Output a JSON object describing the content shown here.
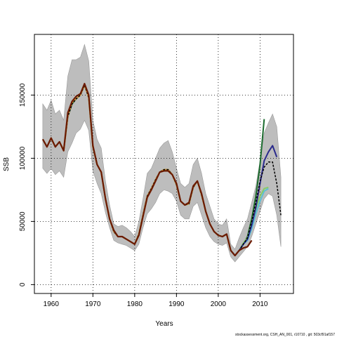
{
  "chart_data": {
    "type": "line",
    "xlabel": "Years",
    "ylabel": "SSB",
    "xlim": [
      1956,
      2018
    ],
    "ylim": [
      -7000,
      198000
    ],
    "x_ticks": [
      1960,
      1970,
      1980,
      1990,
      2000,
      2010
    ],
    "y_ticks": [
      0,
      50000,
      100000,
      150000
    ],
    "y_tick_labels": [
      "0",
      "50000",
      "100000",
      "150000"
    ],
    "grid": "dotted",
    "footer": "stockassessment.org, CSH_AN_001, r10710 , git: 503cf91af157",
    "band": {
      "x": [
        1958,
        1959,
        1960,
        1961,
        1962,
        1963,
        1964,
        1965,
        1966,
        1967,
        1968,
        1969,
        1970,
        1971,
        1972,
        1973,
        1974,
        1975,
        1976,
        1977,
        1978,
        1979,
        1980,
        1981,
        1982,
        1983,
        1984,
        1985,
        1986,
        1987,
        1988,
        1989,
        1990,
        1991,
        1992,
        1993,
        1994,
        1995,
        1996,
        1997,
        1998,
        1999,
        2000,
        2001,
        2002,
        2003,
        2004,
        2005,
        2006,
        2007,
        2008,
        2009,
        2010,
        2011,
        2012,
        2013,
        2014,
        2015
      ],
      "upper": [
        143000,
        138000,
        146000,
        135000,
        138000,
        130000,
        165000,
        178000,
        178000,
        180000,
        190000,
        177000,
        130000,
        115000,
        108000,
        82000,
        63000,
        48000,
        46000,
        47000,
        45000,
        42000,
        38000,
        50000,
        68000,
        88000,
        92000,
        100000,
        108000,
        112000,
        114000,
        105000,
        92000,
        80000,
        77000,
        80000,
        95000,
        100000,
        88000,
        72000,
        62000,
        52000,
        48000,
        47000,
        52000,
        32000,
        28000,
        37000,
        45000,
        52000,
        65000,
        78000,
        98000,
        120000,
        128000,
        135000,
        125000,
        85000
      ],
      "lower": [
        92000,
        88000,
        92000,
        87000,
        90000,
        85000,
        105000,
        112000,
        120000,
        123000,
        130000,
        122000,
        90000,
        80000,
        72000,
        57000,
        45000,
        35000,
        33000,
        32000,
        31000,
        29000,
        27000,
        32000,
        45000,
        56000,
        60000,
        65000,
        72000,
        75000,
        74000,
        72000,
        66000,
        55000,
        52000,
        52000,
        62000,
        65000,
        55000,
        45000,
        38000,
        34000,
        32000,
        31000,
        33000,
        22000,
        18000,
        22000,
        26000,
        30000,
        38000,
        48000,
        58000,
        68000,
        72000,
        70000,
        55000,
        30000
      ]
    },
    "series": [
      {
        "color": "#1b6b2e",
        "width": 2,
        "dash": "",
        "x": [
          1958,
          1959,
          1960,
          1961,
          1962,
          1963,
          1964,
          1965,
          1966,
          1967,
          1968,
          1969,
          1970,
          1971,
          1972,
          1973,
          1974,
          1975,
          1976,
          1977,
          1978,
          1979,
          1980,
          1981,
          1982,
          1983,
          1984,
          1985,
          1986,
          1987,
          1988,
          1989,
          1990,
          1991,
          1992,
          1993,
          1994,
          1995,
          1996,
          1997,
          1998,
          1999,
          2000,
          2001,
          2002,
          2003,
          2004,
          2005,
          2006,
          2007,
          2008,
          2009,
          2010,
          2011
        ],
        "y": [
          115000,
          109000,
          116000,
          109000,
          113000,
          106000,
          133000,
          143000,
          147000,
          150000,
          158000,
          148000,
          109000,
          95000,
          89000,
          68000,
          52000,
          42000,
          38000,
          38000,
          36000,
          34000,
          32000,
          40000,
          55000,
          70000,
          76000,
          83000,
          89000,
          91000,
          91000,
          87000,
          79000,
          66000,
          63000,
          64000,
          77000,
          82000,
          71000,
          58000,
          48000,
          42000,
          39000,
          38000,
          40000,
          27000,
          23000,
          27000,
          32000,
          38000,
          52000,
          70000,
          95000,
          131000
        ]
      },
      {
        "color": "#e0a040",
        "width": 2,
        "dash": "",
        "x": [
          1958,
          1959,
          1960,
          1961,
          1962,
          1963,
          1964,
          1965,
          1966,
          1967,
          1968,
          1969,
          1970,
          1971,
          1972,
          1973,
          1974,
          1975,
          1976,
          1977,
          1978,
          1979,
          1980,
          1981,
          1982,
          1983,
          1984,
          1985,
          1986,
          1987,
          1988,
          1989,
          1990,
          1991,
          1992,
          1993,
          1994,
          1995,
          1996,
          1997,
          1998,
          1999,
          2000,
          2001,
          2002,
          2003,
          2004,
          2005,
          2006,
          2007,
          2008,
          2009,
          2010
        ],
        "y": [
          115000,
          109000,
          116000,
          109000,
          113000,
          106000,
          133000,
          144000,
          147000,
          150000,
          158000,
          148000,
          109000,
          95000,
          89000,
          68000,
          52000,
          42000,
          38000,
          38000,
          36000,
          34000,
          32000,
          40000,
          55000,
          70000,
          76000,
          83000,
          89000,
          91000,
          91000,
          87000,
          79000,
          66000,
          63000,
          64000,
          77000,
          82000,
          71000,
          58000,
          48000,
          42000,
          39000,
          38000,
          40000,
          27000,
          23000,
          27000,
          32000,
          36000,
          48000,
          62000,
          78000
        ]
      },
      {
        "color": "#5bbfd6",
        "width": 2,
        "dash": "",
        "x": [
          2003,
          2004,
          2005,
          2006,
          2007,
          2008,
          2009,
          2010,
          2011,
          2012
        ],
        "y": [
          27000,
          23000,
          27000,
          32000,
          35000,
          44000,
          56000,
          66000,
          74000,
          76000
        ]
      },
      {
        "color": "#88cc66",
        "width": 2,
        "dash": "",
        "x": [
          2003,
          2004,
          2005,
          2006,
          2007,
          2008,
          2009,
          2010,
          2011,
          2012
        ],
        "y": [
          27000,
          23000,
          27000,
          33000,
          37000,
          48000,
          60000,
          70000,
          76000,
          77000
        ]
      },
      {
        "color": "#2a2a8c",
        "width": 2,
        "dash": "",
        "x": [
          2003,
          2004,
          2005,
          2006,
          2007,
          2008,
          2009,
          2010,
          2011,
          2012,
          2013,
          2014
        ],
        "y": [
          27000,
          23000,
          27000,
          32000,
          36000,
          47000,
          61000,
          80000,
          98000,
          105000,
          110000,
          101000
        ]
      },
      {
        "color": "#000000",
        "width": 1.5,
        "dash": "3,2",
        "x": [
          1958,
          1959,
          1960,
          1961,
          1962,
          1963,
          1964,
          1965,
          1966,
          1967,
          1968,
          1969,
          1970,
          1971,
          1972,
          1973,
          1974,
          1975,
          1976,
          1977,
          1978,
          1979,
          1980,
          1981,
          1982,
          1983,
          1984,
          1985,
          1986,
          1987,
          1988,
          1989,
          1990,
          1991,
          1992,
          1993,
          1994,
          1995,
          1996,
          1997,
          1998,
          1999,
          2000,
          2001,
          2002,
          2003,
          2004,
          2005,
          2006,
          2007,
          2008,
          2009,
          2010,
          2011,
          2012,
          2013,
          2014,
          2015
        ],
        "y": [
          115000,
          109000,
          116000,
          109000,
          113000,
          106000,
          133000,
          143000,
          147000,
          150000,
          158000,
          148000,
          109000,
          95000,
          89000,
          68000,
          52000,
          42000,
          38000,
          38000,
          36000,
          34000,
          32000,
          40000,
          55000,
          70000,
          76000,
          83000,
          89000,
          91000,
          91000,
          87000,
          79000,
          66000,
          63000,
          64000,
          77000,
          82000,
          71000,
          58000,
          48000,
          42000,
          39000,
          38000,
          40000,
          27000,
          23000,
          27000,
          32000,
          37000,
          50000,
          65000,
          82000,
          93000,
          97000,
          97000,
          80000,
          55000
        ]
      },
      {
        "color": "#6b1a00",
        "width": 2.2,
        "dash": "",
        "x": [
          1958,
          1959,
          1960,
          1961,
          1962,
          1963,
          1964,
          1965,
          1966,
          1967,
          1968,
          1969,
          1970,
          1971,
          1972,
          1973,
          1974,
          1975,
          1976,
          1977,
          1978,
          1979,
          1980,
          1981,
          1982,
          1983,
          1984,
          1985,
          1986,
          1987,
          1988,
          1989,
          1990,
          1991,
          1992,
          1993,
          1994,
          1995,
          1996,
          1997,
          1998,
          1999,
          2000,
          2001,
          2002,
          2003,
          2004,
          2005,
          2006,
          2007,
          2008
        ],
        "y": [
          115000,
          109000,
          116000,
          109000,
          113000,
          106000,
          136000,
          145000,
          149000,
          151000,
          159000,
          150000,
          110000,
          95000,
          89000,
          68000,
          52000,
          43000,
          38000,
          38000,
          36000,
          34000,
          32000,
          39000,
          54000,
          69000,
          75000,
          82000,
          89000,
          90000,
          90000,
          87000,
          80000,
          66000,
          63000,
          65000,
          78000,
          82000,
          72000,
          58000,
          48000,
          42000,
          39000,
          38000,
          40000,
          27000,
          23000,
          27000,
          29000,
          30000,
          35000
        ]
      }
    ]
  }
}
